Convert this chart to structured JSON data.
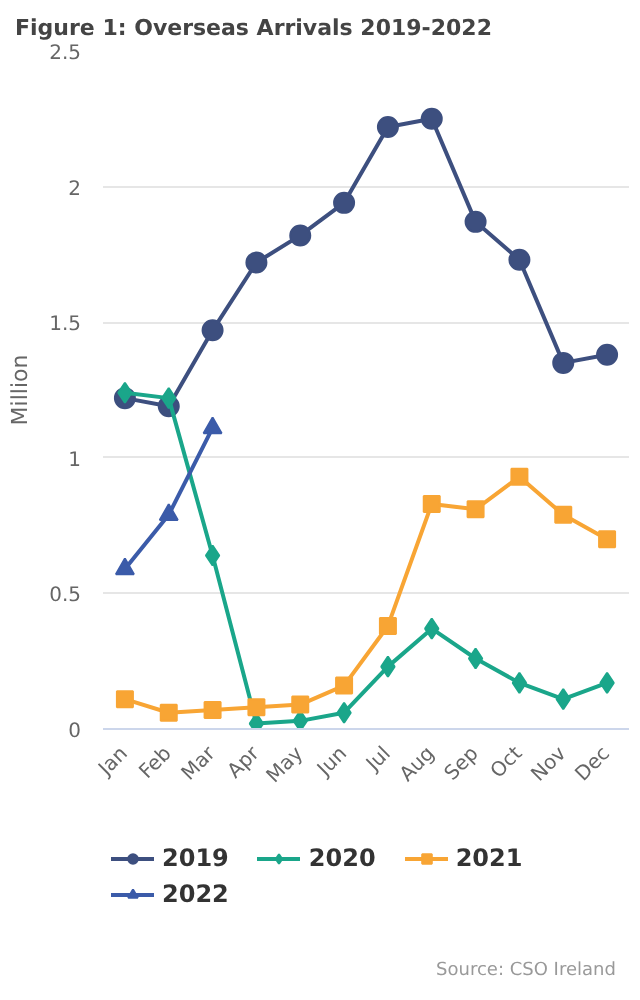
{
  "chart_data": {
    "type": "line",
    "title": "Figure 1: Overseas Arrivals 2019-2022",
    "ylabel": "Million",
    "categories": [
      "Jan",
      "Feb",
      "Mar",
      "Apr",
      "May",
      "Jun",
      "Jul",
      "Aug",
      "Sep",
      "Oct",
      "Nov",
      "Dec"
    ],
    "series": [
      {
        "name": "2019",
        "color": "#3d4f7f",
        "marker": "circle",
        "values": [
          1.22,
          1.19,
          1.47,
          1.72,
          1.82,
          1.94,
          2.22,
          2.25,
          1.87,
          1.73,
          1.35,
          1.38
        ]
      },
      {
        "name": "2020",
        "color": "#1aa68a",
        "marker": "diamond",
        "values": [
          1.24,
          1.22,
          0.64,
          0.02,
          0.03,
          0.06,
          0.23,
          0.37,
          0.26,
          0.17,
          0.11,
          0.17
        ]
      },
      {
        "name": "2021",
        "color": "#f8a534",
        "marker": "square",
        "values": [
          0.11,
          0.06,
          0.07,
          0.08,
          0.09,
          0.16,
          0.38,
          0.83,
          0.81,
          0.93,
          0.79,
          0.7
        ]
      },
      {
        "name": "2022",
        "color": "#3b5ba9",
        "marker": "triangle",
        "values": [
          0.59,
          0.79,
          1.11,
          null,
          null,
          null,
          null,
          null,
          null,
          null,
          null,
          null
        ]
      }
    ],
    "ylim": [
      0,
      2.5
    ],
    "yticks": [
      0,
      0.5,
      1,
      1.5,
      2,
      2.5
    ],
    "grid": "y",
    "legend": "bottom",
    "annotations": [
      "Source: CSO Ireland"
    ]
  }
}
